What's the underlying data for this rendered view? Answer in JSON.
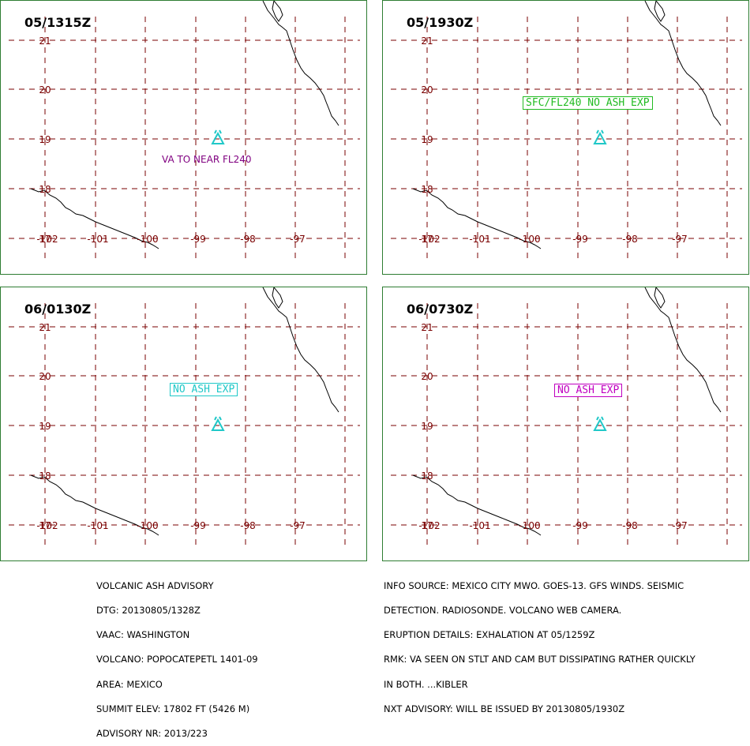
{
  "panels": [
    {
      "time": "05/1315Z",
      "annotation": "VA TO NEAR FL240",
      "annotation_color": "#800080",
      "annotation_style": "plain"
    },
    {
      "time": "05/1930Z",
      "annotation": "SFC/FL240 NO ASH EXP",
      "annotation_color": "#22bb22",
      "annotation_style": "boxed"
    },
    {
      "time": "06/0130Z",
      "annotation": "NO ASH EXP",
      "annotation_color": "#20c8c8",
      "annotation_style": "boxed"
    },
    {
      "time": "06/0730Z",
      "annotation": "NO ASH EXP",
      "annotation_color": "#c000c0",
      "annotation_style": "boxed"
    }
  ],
  "map": {
    "lat_labels": [
      "21",
      "20",
      "19",
      "18",
      "17"
    ],
    "lon_labels": [
      "-102",
      "-101",
      "-100",
      "-99",
      "-98",
      "-97"
    ],
    "grid_color": "#7a0000",
    "volcano_icon": "volcano-triangle-icon",
    "volcano_color": "#20c8c8"
  },
  "footer_left": [
    "VOLCANIC ASH ADVISORY",
    "DTG: 20130805/1328Z",
    "VAAC: WASHINGTON",
    "VOLCANO: POPOCATEPETL 1401-09",
    "AREA: MEXICO",
    "SUMMIT ELEV: 17802 FT (5426 M)",
    "ADVISORY NR: 2013/223"
  ],
  "footer_right": [
    "INFO SOURCE: MEXICO CITY MWO. GOES-13. GFS WINDS. SEISMIC",
    "DETECTION. RADIOSONDE. VOLCANO WEB CAMERA.",
    "ERUPTION DETAILS: EXHALATION AT 05/1259Z",
    "RMK: VA SEEN ON STLT AND CAM BUT DISSIPATING RATHER QUICKLY",
    "IN BOTH. ...KIBLER",
    "NXT ADVISORY: WILL BE ISSUED BY 20130805/1930Z"
  ]
}
